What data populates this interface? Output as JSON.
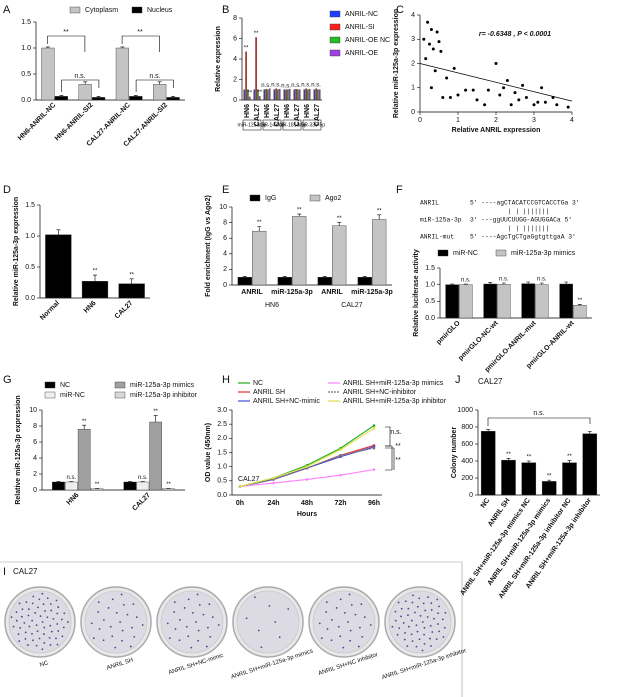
{
  "chart_data": [
    {
      "type": "bar",
      "panel": "A",
      "categories": [
        "HN6-ANRIL-NC",
        "HN6-ANRIL-SI2",
        "CAL27-ANRIL-NC",
        "CAL27-ANRIL-SI2"
      ],
      "series": [
        {
          "name": "Cytoplasm",
          "color": "#c4c4c4",
          "values": [
            1.0,
            0.3,
            1.0,
            0.3
          ],
          "errors": [
            0.02,
            0.05,
            0.02,
            0.05
          ]
        },
        {
          "name": "Nucleus",
          "color": "#000000",
          "values": [
            0.07,
            0.05,
            0.07,
            0.05
          ],
          "errors": [
            0.02,
            0.02,
            0.02,
            0.02
          ]
        }
      ],
      "ylim": [
        0,
        1.5
      ],
      "yticks": [
        {
          "value": 0,
          "label": "0.0"
        },
        0.5,
        {
          "value": 1,
          "label": "1.0"
        },
        1.5
      ],
      "annotations": [
        "**",
        "n.s.",
        "**",
        "n.s."
      ]
    },
    {
      "type": "bar",
      "panel": "B",
      "ylabel": "Relative expression",
      "categories": [
        "HN6",
        "CAL27",
        "HN6",
        "CAL27",
        "HN6",
        "CAL27",
        "HN6",
        "CAL27"
      ],
      "groups": [
        "miR-125a-3p",
        "miR-143-3p",
        "miR-181d-5p",
        "miR-339-5p"
      ],
      "series": [
        {
          "name": "ANRIL-NC",
          "color": "#1f3fff",
          "values": [
            1,
            1,
            1,
            1,
            1,
            1,
            1,
            1
          ]
        },
        {
          "name": "ANRIL-SI",
          "color": "#ff2020",
          "values": [
            4.7,
            6.1,
            1.05,
            1.1,
            1.0,
            1.05,
            1.1,
            1.1
          ],
          "significance": [
            "**",
            "**",
            "n.s.",
            "n.s.",
            "n.s.",
            "n.s.",
            "n.s.",
            "n.s."
          ]
        },
        {
          "name": "ANRIL-OE NC",
          "color": "#22c022",
          "values": [
            1,
            1,
            1,
            1,
            1,
            1,
            1,
            1
          ]
        },
        {
          "name": "ANRIL-OE",
          "color": "#a040e0",
          "values": [
            0.3,
            0.35,
            1.1,
            1.05,
            1.05,
            1.0,
            1.05,
            1.0
          ],
          "significance": [
            "**",
            "**",
            null,
            null,
            null,
            null,
            null,
            null
          ]
        }
      ],
      "ylim": [
        0,
        8
      ],
      "yticks": [
        0,
        2,
        4,
        6,
        8
      ]
    },
    {
      "type": "scatter",
      "panel": "C",
      "xlabel": "Relative ANRIL expression",
      "ylabel": "Relative miR-125a-3p expression",
      "annotation": "r= -0.6348 , P < 0.0001",
      "x": [
        0.1,
        0.15,
        0.2,
        0.25,
        0.3,
        0.35,
        0.4,
        0.45,
        0.5,
        0.3,
        0.55,
        0.6,
        0.7,
        0.8,
        0.9,
        1.0,
        1.2,
        1.4,
        1.5,
        1.7,
        1.8,
        2.0,
        2.1,
        2.2,
        2.3,
        2.4,
        2.6,
        2.7,
        2.8,
        3.0,
        3.1,
        3.3,
        3.5,
        3.6,
        3.9,
        3.2,
        2.5
      ],
      "y": [
        3.0,
        2.2,
        3.7,
        2.8,
        3.4,
        2.6,
        1.7,
        3.3,
        2.9,
        1.0,
        2.5,
        0.6,
        1.4,
        0.6,
        1.8,
        0.7,
        0.9,
        0.9,
        0.5,
        0.3,
        0.9,
        2.0,
        0.7,
        1.0,
        1.3,
        0.3,
        0.5,
        1.1,
        0.6,
        0.3,
        0.4,
        0.4,
        0.6,
        0.3,
        0.2,
        1.0,
        0.8
      ],
      "trend_line": {
        "x": [
          0,
          4
        ],
        "y": [
          2.0,
          0.45
        ]
      },
      "xlim": [
        0,
        4
      ],
      "ylim": [
        0,
        4
      ],
      "xticks": [
        0,
        1,
        2,
        3,
        4
      ],
      "yticks": [
        0,
        1,
        2,
        3,
        4
      ]
    },
    {
      "type": "bar",
      "panel": "D",
      "ylabel": "Relative miR-125a-3p expression",
      "categories": [
        "Normal",
        "HN6",
        "CAL27"
      ],
      "color": "#000000",
      "values": [
        1.02,
        0.27,
        0.23
      ],
      "errors": [
        0.08,
        0.1,
        0.08
      ],
      "significance": [
        null,
        "**",
        "**"
      ],
      "ylim": [
        0,
        1.5
      ],
      "yticks": [
        {
          "value": 0,
          "label": "0.0"
        },
        0.5,
        {
          "value": 1,
          "label": "1.0"
        },
        1.5
      ]
    },
    {
      "type": "bar",
      "panel": "E",
      "ylabel": "Fold enrichment (IgG vs Ago2)",
      "categories": [
        "ANRIL",
        "miR-125a-3p",
        "ANRIL",
        "miR-125a-3p"
      ],
      "groups": [
        "HN6",
        "CAL27"
      ],
      "series": [
        {
          "name": "IgG",
          "color": "#000000",
          "values": [
            1,
            1,
            1,
            1
          ],
          "errors": [
            0.1,
            0.1,
            0.1,
            0.1
          ]
        },
        {
          "name": "Ago2",
          "color": "#c4c4c4",
          "values": [
            6.9,
            8.8,
            7.6,
            8.4
          ],
          "errors": [
            0.6,
            0.3,
            0.4,
            0.6
          ],
          "significance": [
            "**",
            "**",
            "**",
            "**"
          ]
        }
      ],
      "ylim": [
        0,
        10
      ],
      "yticks": [
        0,
        2,
        4,
        6,
        8,
        10
      ]
    },
    {
      "type": "bar",
      "panel": "F",
      "ylabel": "Relative luciferase activity",
      "sequences": [
        {
          "name": "ANRIL",
          "seq": "5' ----agCTACATCCGTCACCTGa 3'"
        },
        {
          "name": "miR-125a-3p",
          "seq": "3' ---ggUUCUUGG-AGUGGACa 5'"
        },
        {
          "name": "ANRIL-mut",
          "seq": "5' ----AgcTgCTgaGgtgttgaA 3'"
        }
      ],
      "pairing": [
        "          | | |||||||",
        "          | | |||||||"
      ],
      "categories": [
        "pmirGLO",
        "pmirGLO-NC-wt",
        "pmirGLO-ANRIL-mut",
        "pmirGLO-ANRIL-wt"
      ],
      "series": [
        {
          "name": "miR-NC",
          "color": "#000000",
          "values": [
            1.0,
            1.02,
            1.03,
            1.02
          ],
          "errors": [
            0.02,
            0.05,
            0.05,
            0.06
          ]
        },
        {
          "name": "miR-125a-3p mimics",
          "color": "#c4c4c4",
          "values": [
            1.0,
            1.01,
            1.0,
            0.38
          ],
          "errors": [
            0.02,
            0.04,
            0.05,
            0.03
          ],
          "significance": [
            "n.s.",
            "n.s.",
            "n.s.",
            "**"
          ]
        }
      ],
      "ylim": [
        0,
        1.5
      ],
      "yticks": [
        {
          "value": 0,
          "label": "0.0"
        },
        0.5,
        {
          "value": 1,
          "label": "1.0"
        },
        1.5
      ]
    },
    {
      "type": "bar",
      "panel": "G",
      "ylabel": "Relative miR-125a-3p expression",
      "categories": [
        "HN6",
        "CAL27"
      ],
      "series": [
        {
          "name": "NC",
          "color": "#000000",
          "values": [
            1,
            1
          ],
          "errors": [
            0.05,
            0.05
          ]
        },
        {
          "name": "miR-NC",
          "color": "#eeeeee",
          "values": [
            1,
            1
          ],
          "errors": [
            0.05,
            0.05
          ],
          "significance": [
            "n.s.",
            "n.s."
          ]
        },
        {
          "name": "miR-125a-3p mimics",
          "color": "#a0a0a0",
          "values": [
            7.6,
            8.5
          ],
          "errors": [
            0.5,
            0.8
          ],
          "significance": [
            "**",
            "**"
          ]
        },
        {
          "name": "miR-125a-3p inhibitor",
          "color": "#d8d8d8",
          "values": [
            0.15,
            0.15
          ],
          "errors": [
            0.03,
            0.03
          ],
          "significance": [
            "**",
            "**"
          ]
        }
      ],
      "ylim": [
        0,
        10
      ],
      "yticks": [
        0,
        2,
        4,
        6,
        8,
        10
      ]
    },
    {
      "type": "line",
      "panel": "H",
      "xlabel": "Hours",
      "ylabel": "OD value (450nm)",
      "inset_label": "CAL27",
      "categories": [
        "0h",
        "24h",
        "48h",
        "72h",
        "96h"
      ],
      "series": [
        {
          "name": "NC",
          "color": "#22aa22",
          "values": [
            0.3,
            0.6,
            1.05,
            1.65,
            2.45
          ]
        },
        {
          "name": "ANRIL SH",
          "color": "#e03030",
          "values": [
            0.3,
            0.55,
            0.95,
            1.4,
            1.75
          ]
        },
        {
          "name": "ANRIL SH+NC-mimic",
          "color": "#4050d0",
          "values": [
            0.3,
            0.55,
            0.95,
            1.35,
            1.7
          ]
        },
        {
          "name": "ANRIL SH+miR-125a-3p mimics",
          "color": "#ff80ff",
          "values": [
            0.3,
            0.42,
            0.55,
            0.7,
            0.9
          ]
        },
        {
          "name": "ANRIL SH+NC-inhibitor",
          "color": "#777777",
          "dash": true,
          "values": [
            0.3,
            0.55,
            0.95,
            1.4,
            1.65
          ]
        },
        {
          "name": "ANRIL SH+miR-125a-3p inhibitor",
          "color": "#e0e040",
          "values": [
            0.3,
            0.6,
            1.0,
            1.6,
            2.35
          ]
        }
      ],
      "ylim": [
        0,
        3
      ],
      "yticks": [
        {
          "value": 0,
          "label": "0.0"
        },
        0.5,
        {
          "value": 1,
          "label": "1.0"
        },
        1.5,
        {
          "value": 2,
          "label": "2.0"
        },
        2.5,
        {
          "value": 3,
          "label": "3.0"
        }
      ],
      "annotations": [
        "n.s.",
        "**",
        "**"
      ]
    },
    {
      "type": "bar",
      "panel": "J",
      "title": "CAL27",
      "ylabel": "Colony number",
      "categories": [
        "NC",
        "ANRIL SH",
        "ANRIL SH+miR-125a-3p mimics NC",
        "ANRIL SH+miR-125a-3p mimics",
        "ANRIL SH+miR-125a-3p inhibitor NC",
        "ANRIL SH+miR-125a-3p inhibitor"
      ],
      "color": "#000000",
      "values": [
        750,
        410,
        380,
        160,
        380,
        720
      ],
      "errors": [
        20,
        20,
        20,
        15,
        25,
        30
      ],
      "significance": [
        null,
        "**",
        "**",
        "**",
        "**",
        null
      ],
      "ylim": [
        0,
        1000
      ],
      "yticks": [
        0,
        200,
        400,
        600,
        800,
        1000
      ],
      "annotations": [
        "n.s."
      ]
    }
  ],
  "plates": {
    "panel": "I",
    "title": "CAL27",
    "labels": [
      "NC",
      "ANRIL SH",
      "ANRIL SH+NC-mimic",
      "ANRIL SH+miR-125a-3p mimics",
      "ANRIL SH+NC inhibitor",
      "ANRIL SH+miR-125a-3p inhibitor"
    ]
  }
}
